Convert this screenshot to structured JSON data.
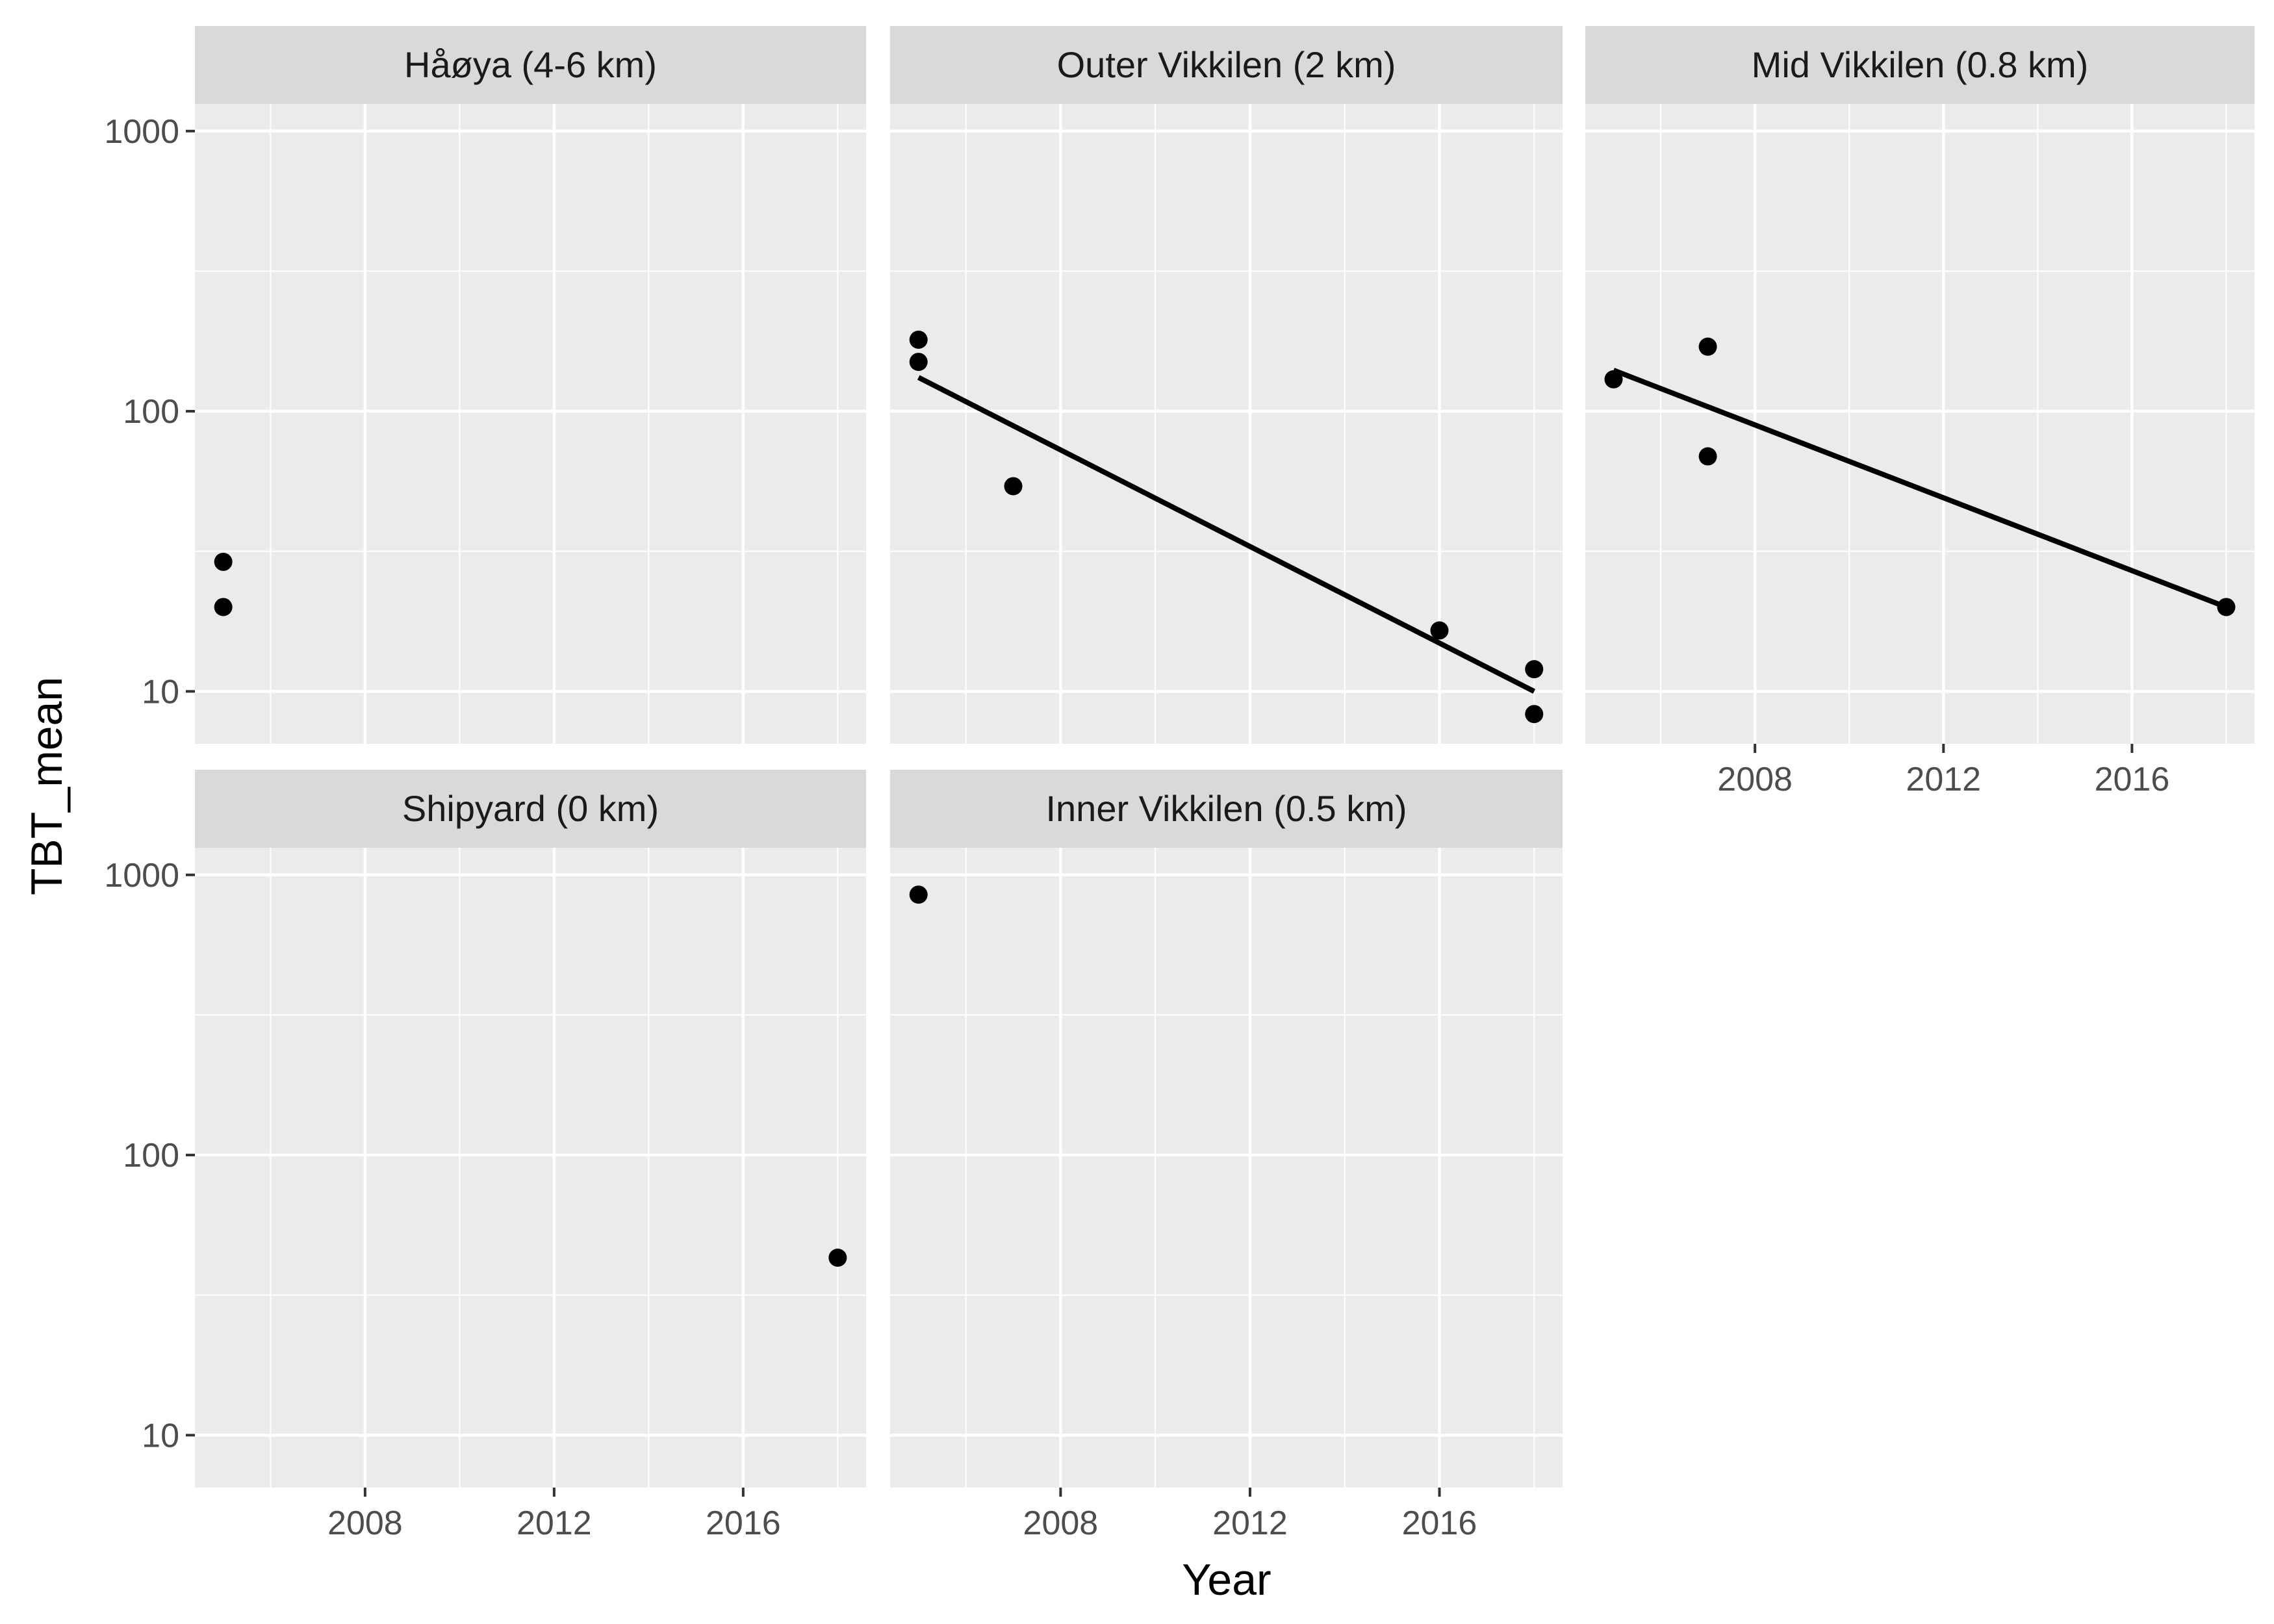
{
  "chart_data": {
    "type": "scatter",
    "xlabel": "Year",
    "ylabel": "TBT_mean",
    "y_scale": "log10",
    "xlim": [
      2004.4,
      2018.6
    ],
    "ylim": [
      6.5,
      1250
    ],
    "x_ticks": [
      2008,
      2012,
      2016
    ],
    "x_tick_labels": [
      "2008",
      "2012",
      "2016"
    ],
    "y_ticks": [
      10,
      100,
      1000
    ],
    "y_tick_labels": [
      "10",
      "100",
      "1000"
    ],
    "grid": true,
    "colors": {
      "panel_bg": "#ebebeb",
      "strip_bg": "#d9d9d9",
      "grid": "#ffffff",
      "points": "#000000",
      "line": "#000000"
    },
    "panels": [
      {
        "title": "Håøya (4-6 km)",
        "points": [
          {
            "x": 2005,
            "y": 29
          },
          {
            "x": 2005,
            "y": 20
          }
        ],
        "trend": null
      },
      {
        "title": "Outer Vikkilen (2 km)",
        "points": [
          {
            "x": 2005,
            "y": 180
          },
          {
            "x": 2005,
            "y": 150
          },
          {
            "x": 2007,
            "y": 54
          },
          {
            "x": 2016,
            "y": 16.5
          },
          {
            "x": 2018,
            "y": 12
          },
          {
            "x": 2018,
            "y": 8.3
          }
        ],
        "trend": {
          "x": [
            2005,
            2018
          ],
          "y": [
            132,
            10
          ]
        }
      },
      {
        "title": "Mid Vikkilen (0.8 km)",
        "points": [
          {
            "x": 2005,
            "y": 130
          },
          {
            "x": 2007,
            "y": 170
          },
          {
            "x": 2007,
            "y": 69
          },
          {
            "x": 2018,
            "y": 20
          }
        ],
        "trend": {
          "x": [
            2005,
            2018
          ],
          "y": [
            140,
            20
          ]
        }
      },
      {
        "title": "Shipyard (0 km)",
        "points": [
          {
            "x": 2018,
            "y": 43
          }
        ],
        "trend": null
      },
      {
        "title": "Inner Vikkilen (0.5 km)",
        "points": [
          {
            "x": 2005,
            "y": 850
          }
        ],
        "trend": null
      }
    ]
  }
}
